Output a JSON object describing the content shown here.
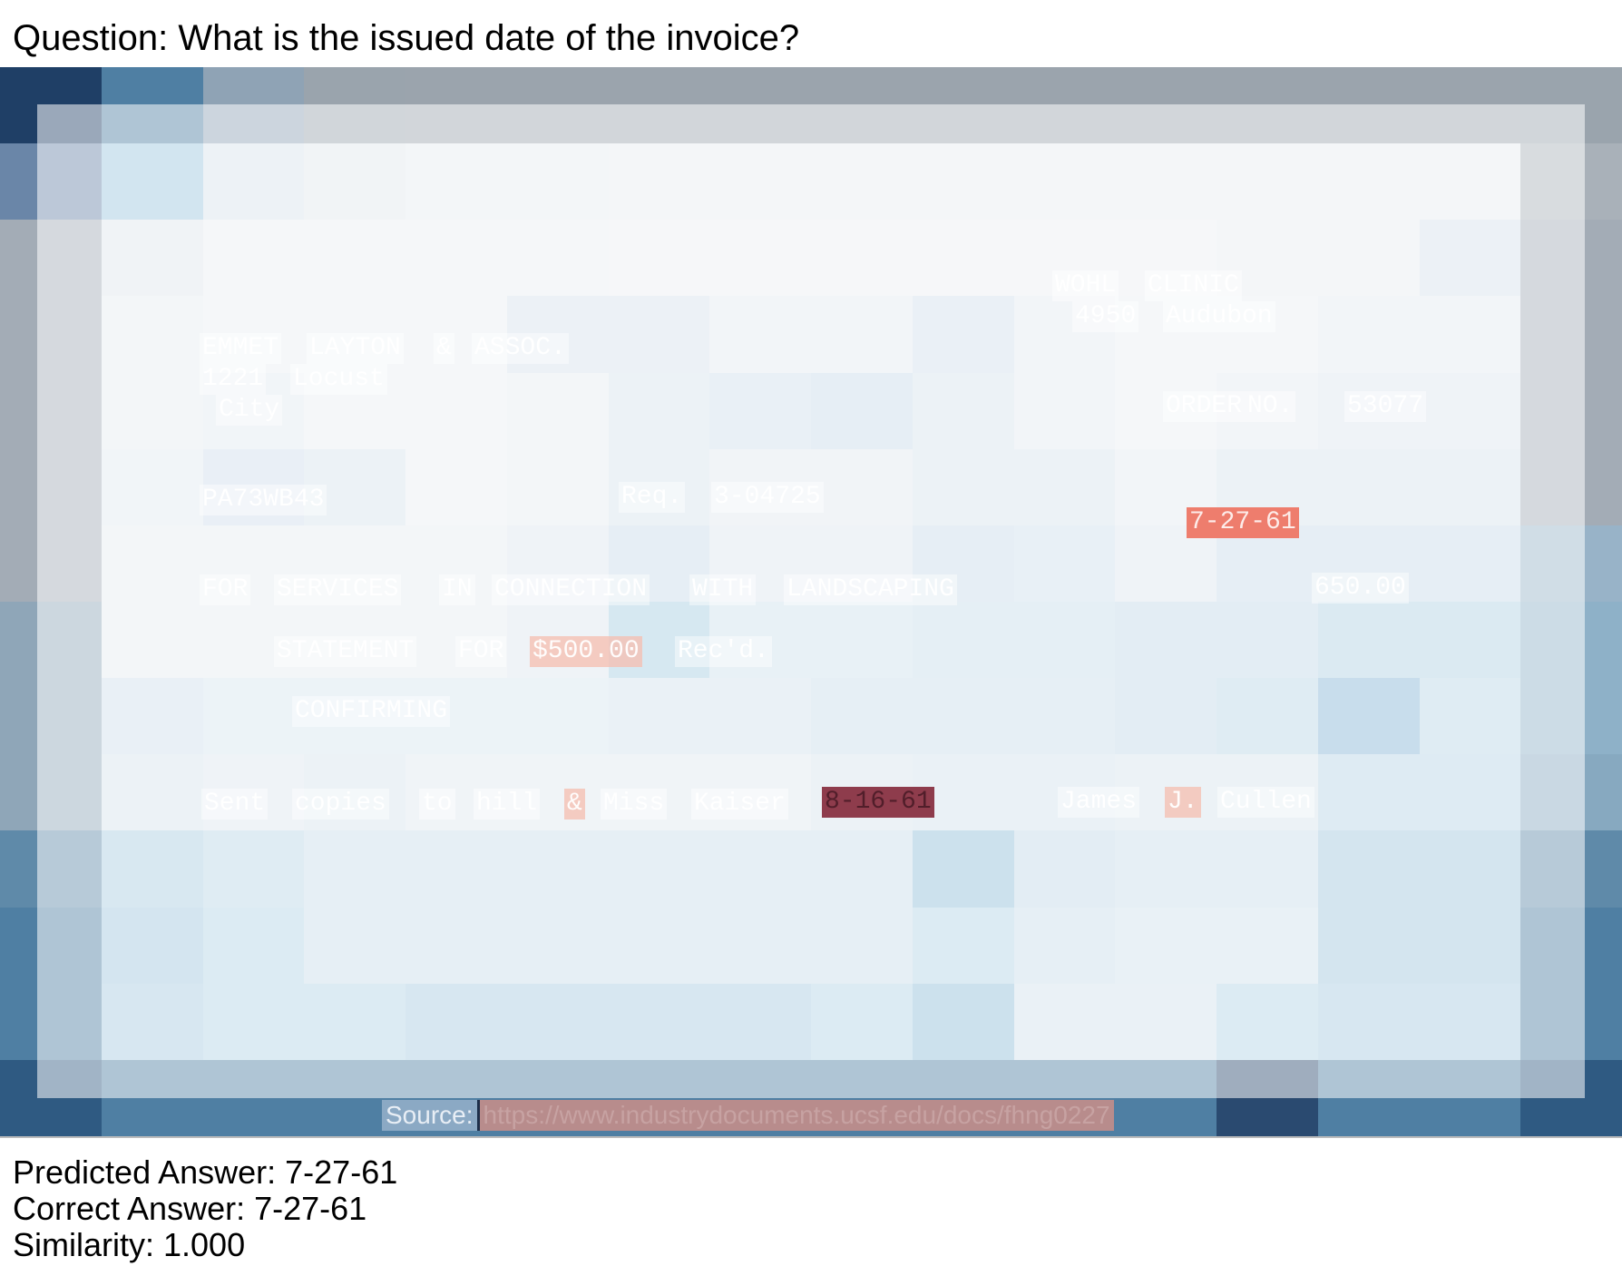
{
  "question": "Question: What is the issued date of the invoice?",
  "document": {
    "tokens": [
      {
        "text": "WOHL",
        "tone": "plain"
      },
      {
        "text": "CLINIC",
        "tone": "plain"
      },
      {
        "text": "4950",
        "tone": "plain"
      },
      {
        "text": "Audubon",
        "tone": "plain"
      },
      {
        "text": "EMMET",
        "tone": "plain"
      },
      {
        "text": "LAYTON",
        "tone": "plain"
      },
      {
        "text": "&",
        "tone": "plain"
      },
      {
        "text": "ASSOC.",
        "tone": "plain"
      },
      {
        "text": "1221",
        "tone": "plain"
      },
      {
        "text": "Locust",
        "tone": "plain"
      },
      {
        "text": "City",
        "tone": "plain"
      },
      {
        "text": "ORDER",
        "tone": "plain"
      },
      {
        "text": "NO.",
        "tone": "plain"
      },
      {
        "text": "53077",
        "tone": "plain"
      },
      {
        "text": "PA73WB43",
        "tone": "plain"
      },
      {
        "text": "Req.",
        "tone": "plain"
      },
      {
        "text": "3-04725",
        "tone": "plain"
      },
      {
        "text": "7-27-61",
        "tone": "red"
      },
      {
        "text": "FOR",
        "tone": "plain"
      },
      {
        "text": "SERVICES",
        "tone": "plain"
      },
      {
        "text": "IN",
        "tone": "plain"
      },
      {
        "text": "CONNECTION",
        "tone": "plain"
      },
      {
        "text": "WITH",
        "tone": "plain"
      },
      {
        "text": "LANDSCAPING",
        "tone": "plain"
      },
      {
        "text": "650.00",
        "tone": "plain"
      },
      {
        "text": "STATEMENT",
        "tone": "plain"
      },
      {
        "text": "FOR",
        "tone": "plain"
      },
      {
        "text": "$500.00",
        "tone": "pink"
      },
      {
        "text": "Rec'd.",
        "tone": "plain"
      },
      {
        "text": "CONFIRMING",
        "tone": "plain"
      },
      {
        "text": "Sent",
        "tone": "plain"
      },
      {
        "text": "copies",
        "tone": "plain"
      },
      {
        "text": "to",
        "tone": "plain"
      },
      {
        "text": "hill",
        "tone": "plain"
      },
      {
        "text": "&",
        "tone": "pink"
      },
      {
        "text": "Miss",
        "tone": "plain"
      },
      {
        "text": "Kaiser",
        "tone": "plain"
      },
      {
        "text": "8-16-61",
        "tone": "dark"
      },
      {
        "text": "James",
        "tone": "plain"
      },
      {
        "text": "J.",
        "tone": "pink"
      },
      {
        "text": "Cullen",
        "tone": "plain"
      }
    ],
    "source_label": "Source:",
    "source_url": "https://www.industrydocuments.ucsf.edu/docs/fhng0227"
  },
  "results": {
    "predicted": "Predicted Answer: 7-27-61",
    "correct": "Correct Answer: 7-27-61",
    "similarity": "Similarity: 1.000"
  },
  "colors": {
    "highlight_red": "#ee7d6d",
    "highlight_dark": "#8e3c4c",
    "heat_light": "#e3ebf2",
    "heat_dark": "#1e3f66"
  }
}
